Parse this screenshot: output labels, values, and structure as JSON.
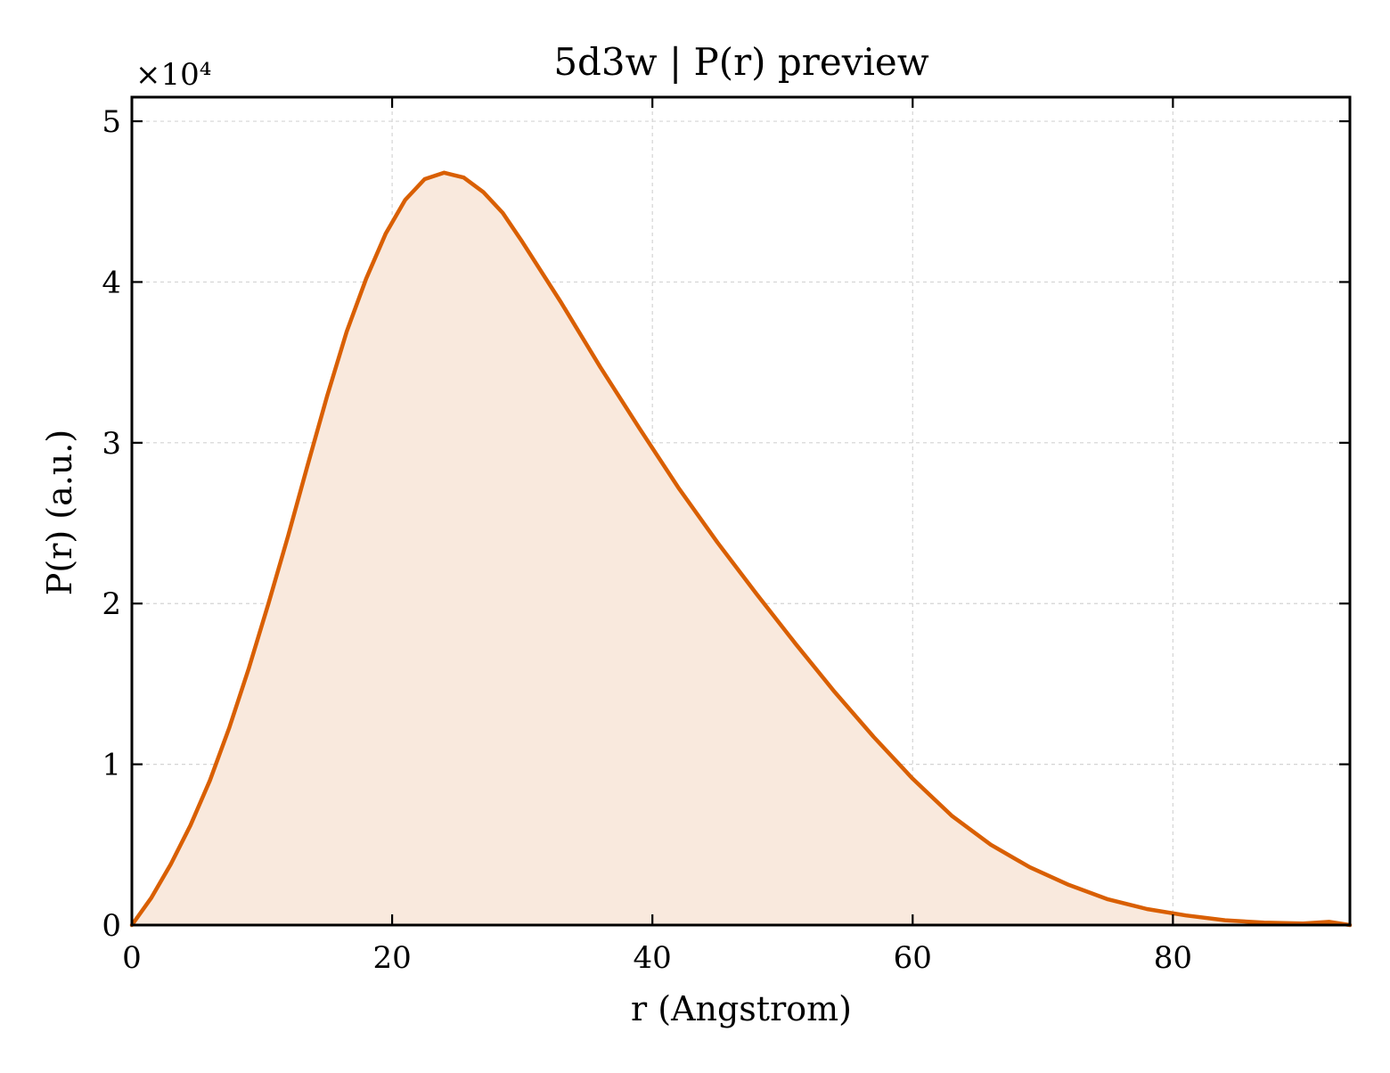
{
  "chart_data": {
    "type": "area",
    "title": "5d3w | P(r) preview",
    "xlabel": "r (Angstrom)",
    "ylabel": "P(r) (a.u.)",
    "y_multiplier": "×10⁴",
    "xlim": [
      0,
      93.6
    ],
    "ylim": [
      0,
      5.15
    ],
    "xticks": [
      0,
      20,
      40,
      60,
      80
    ],
    "yticks": [
      0,
      1,
      2,
      3,
      4,
      5
    ],
    "grid": true,
    "line_color": "#d95f02",
    "fill_color": "#f9e9dd",
    "series": [
      {
        "x": [
          0,
          1.5,
          3,
          4.5,
          6,
          7.5,
          9,
          10.5,
          12,
          13.5,
          15,
          16.5,
          18,
          19.5,
          21,
          22.5,
          24,
          25.5,
          27,
          28.5,
          30,
          33,
          36,
          39,
          42,
          45,
          48,
          51,
          54,
          57,
          60,
          63,
          66,
          69,
          72,
          75,
          78,
          81,
          84,
          87,
          90,
          92,
          93.6
        ],
        "y": [
          0,
          0.17,
          0.38,
          0.62,
          0.9,
          1.23,
          1.6,
          2.0,
          2.42,
          2.86,
          3.29,
          3.69,
          4.02,
          4.3,
          4.51,
          4.64,
          4.68,
          4.65,
          4.56,
          4.43,
          4.25,
          3.87,
          3.47,
          3.09,
          2.72,
          2.38,
          2.06,
          1.75,
          1.45,
          1.17,
          0.91,
          0.68,
          0.5,
          0.36,
          0.25,
          0.16,
          0.1,
          0.06,
          0.03,
          0.015,
          0.01,
          0.02,
          0.0
        ]
      }
    ]
  }
}
